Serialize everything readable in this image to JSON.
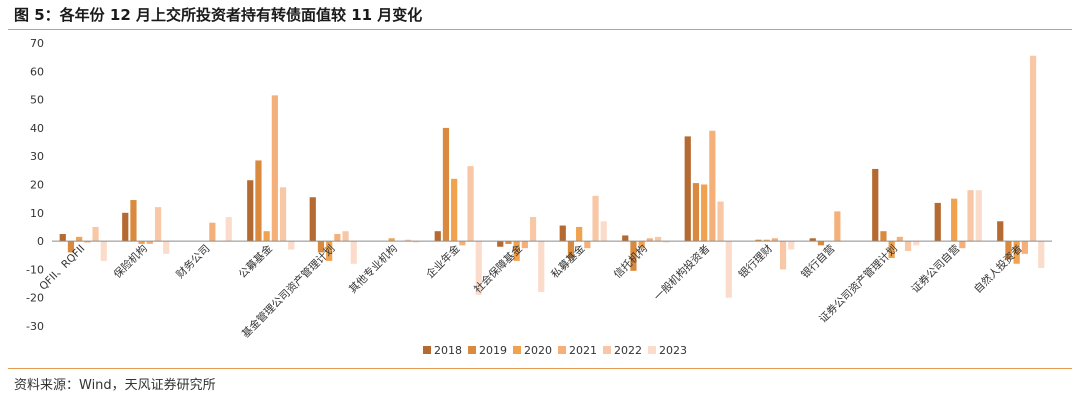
{
  "header": {
    "title": "图 5：各年份 12 月上交所投资者持有转债面值较 11 月变化"
  },
  "footer": {
    "source": "资料来源：Wind，天风证券研究所"
  },
  "colors": {
    "series": [
      "#b46a30",
      "#d98a3e",
      "#f0a24f",
      "#f5b07a",
      "#f8c7a6",
      "#fbdccb"
    ],
    "rule": "#e39b4f",
    "axis": "#8c8c8c"
  },
  "chart_data": {
    "type": "bar",
    "title": "",
    "xlabel": "",
    "ylabel": "",
    "ylim": [
      -30,
      70
    ],
    "yticks": [
      70,
      60,
      50,
      40,
      30,
      20,
      10,
      0,
      -10,
      -20,
      -30
    ],
    "grid": false,
    "legend_position": "bottom",
    "categories": [
      "QFII、RQFII",
      "保险机构",
      "财务公司",
      "公募基金",
      "基金管理公司资产管理计划",
      "其他专业机构",
      "企业年金",
      "社会保障基金",
      "私募基金",
      "信托机构",
      "一般机构投资者",
      "银行理财",
      "银行自营",
      "证券公司资产管理计划",
      "证券公司自营",
      "自然人投资者"
    ],
    "series": [
      {
        "name": "2018",
        "values": [
          2.5,
          10,
          0,
          21.5,
          15.5,
          0,
          3.5,
          -2,
          5.5,
          2,
          37,
          0,
          1,
          25.5,
          13.5,
          7
        ]
      },
      {
        "name": "2019",
        "values": [
          -4,
          14.5,
          0,
          28.5,
          -4,
          0,
          40,
          -1,
          -6,
          -10.5,
          20.5,
          0.5,
          -1.5,
          3.5,
          0,
          -6.5
        ]
      },
      {
        "name": "2020",
        "values": [
          1.5,
          -1,
          0,
          3.5,
          -7,
          1,
          22,
          -7,
          5,
          -2.5,
          20,
          0.5,
          0,
          -6,
          15,
          -8
        ]
      },
      {
        "name": "2021",
        "values": [
          -0.5,
          -1,
          6.5,
          51.5,
          2.5,
          0,
          -1.5,
          -2.5,
          -2.5,
          1,
          39,
          1,
          10.5,
          1.5,
          -2.5,
          -4.5
        ]
      },
      {
        "name": "2022",
        "values": [
          5,
          12,
          0,
          19,
          3.5,
          0.5,
          26.5,
          8.5,
          16,
          1.5,
          14,
          -10,
          0,
          -3.5,
          18,
          65.5
        ]
      },
      {
        "name": "2023",
        "values": [
          -7,
          -4.5,
          8.5,
          -3,
          -8,
          -0.5,
          -19,
          -18,
          7,
          -0.5,
          -20,
          -3,
          0,
          -1.5,
          18,
          -9.5
        ]
      }
    ]
  }
}
